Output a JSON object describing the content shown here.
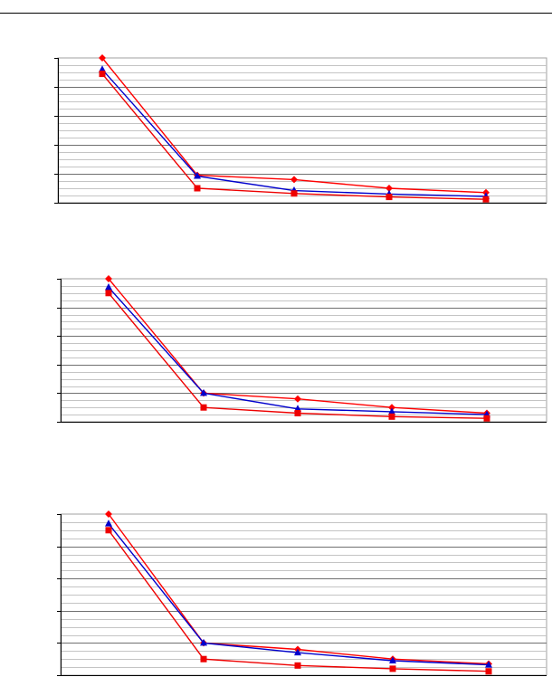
{
  "colors": {
    "grid": "#a0a0a0",
    "axis": "#000000",
    "series_diamond": "#ff0000",
    "series_triangle": "#0000cc",
    "series_square": "#ee0000"
  },
  "chart_data": [
    {
      "type": "line",
      "x": [
        1,
        2,
        3,
        4,
        5
      ],
      "ylim": [
        0,
        5
      ],
      "grid": true,
      "legend": "none",
      "series": [
        {
          "marker": "diamond",
          "values": [
            5.0,
            0.95,
            0.8,
            0.5,
            0.35
          ]
        },
        {
          "marker": "triangle",
          "values": [
            4.6,
            0.92,
            0.42,
            0.3,
            0.22
          ]
        },
        {
          "marker": "square",
          "values": [
            4.45,
            0.5,
            0.32,
            0.2,
            0.12
          ]
        }
      ]
    },
    {
      "type": "line",
      "x": [
        1,
        2,
        3,
        4,
        5
      ],
      "ylim": [
        0,
        5
      ],
      "grid": true,
      "legend": "none",
      "series": [
        {
          "marker": "diamond",
          "values": [
            5.0,
            1.0,
            0.8,
            0.5,
            0.3
          ]
        },
        {
          "marker": "triangle",
          "values": [
            4.7,
            1.0,
            0.45,
            0.35,
            0.25
          ]
        },
        {
          "marker": "square",
          "values": [
            4.5,
            0.5,
            0.3,
            0.18,
            0.12
          ]
        }
      ]
    },
    {
      "type": "line",
      "x": [
        1,
        2,
        3,
        4,
        5
      ],
      "ylim": [
        0,
        5
      ],
      "grid": true,
      "legend": "none",
      "series": [
        {
          "marker": "diamond",
          "values": [
            5.0,
            1.0,
            0.8,
            0.5,
            0.35
          ]
        },
        {
          "marker": "triangle",
          "values": [
            4.7,
            1.0,
            0.7,
            0.45,
            0.32
          ]
        },
        {
          "marker": "square",
          "values": [
            4.5,
            0.5,
            0.3,
            0.2,
            0.12
          ]
        }
      ]
    }
  ]
}
